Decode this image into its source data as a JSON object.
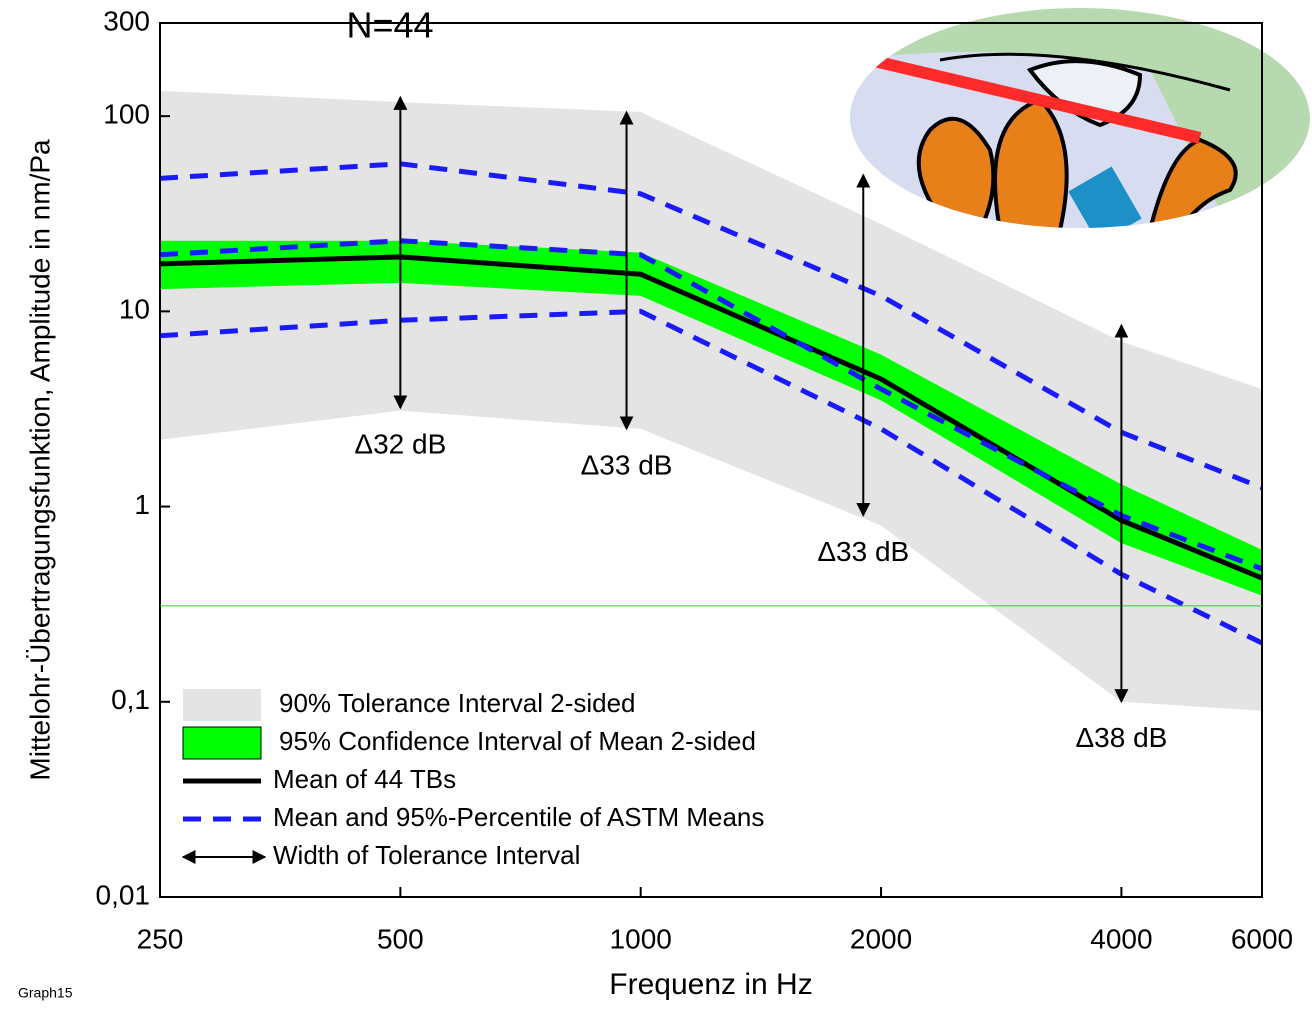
{
  "chart_data": {
    "type": "line",
    "annotations": [
      "N=44",
      "Graph15"
    ],
    "x_label": "Frequenz in Hz",
    "y_label": "Mittelohr-Übertragungsfunktion, Amplitude in nm/Pa",
    "x_log": true,
    "y_log": true,
    "xlim": [
      250,
      6000
    ],
    "xticks": [
      250,
      500,
      1000,
      2000,
      4000,
      6000
    ],
    "ylim": [
      0.01,
      300
    ],
    "yticks": [
      {
        "value": 0.01,
        "label": "0,01"
      },
      {
        "value": 0.1,
        "label": "0,1"
      },
      1,
      10,
      100,
      300
    ],
    "series": [
      {
        "name": "90% Tolerance Interval 2-sided",
        "kind": "band",
        "color": "#e4e4e4",
        "x": [
          250,
          500,
          1000,
          2000,
          4000,
          6000
        ],
        "upper": [
          135,
          118,
          105,
          28,
          7,
          4
        ],
        "lower": [
          2.2,
          3.1,
          2.5,
          0.8,
          0.1,
          0.09
        ]
      },
      {
        "name": "95% Confidence Interval of Mean 2-sided",
        "kind": "band",
        "color": "#00ff00",
        "x": [
          250,
          500,
          1000,
          2000,
          4000,
          6000
        ],
        "upper": [
          23,
          23,
          20,
          6,
          1.3,
          0.6
        ],
        "lower": [
          13,
          14,
          12,
          3.5,
          0.65,
          0.35
        ]
      },
      {
        "name": "Mean of 44 TBs",
        "kind": "line",
        "color": "#000000",
        "x": [
          250,
          500,
          1000,
          2000,
          4000,
          6000
        ],
        "values": [
          17.5,
          19,
          15.5,
          4.5,
          0.85,
          0.43
        ]
      },
      {
        "name": "Mean and 95%-Percentile of ASTM Means",
        "kind": "dashed",
        "color": "#1a1aff",
        "x": [
          250,
          500,
          1000,
          2000,
          4000,
          6000
        ],
        "lines": [
          [
            48,
            57,
            40,
            12,
            2.4,
            1.25
          ],
          [
            19.5,
            23,
            19.5,
            4,
            0.9,
            0.48
          ],
          [
            7.5,
            9,
            10,
            2.5,
            0.45,
            0.2
          ]
        ]
      }
    ],
    "arrow_legend": "Width of Tolerance Interval",
    "arrows": [
      {
        "x": 500,
        "low": 3.2,
        "high": 125,
        "label": "Δ32 dB"
      },
      {
        "x": 960,
        "low": 2.5,
        "high": 105,
        "label": "Δ33 dB"
      },
      {
        "x": 1900,
        "low": 0.9,
        "high": 50,
        "label": "Δ33 dB"
      },
      {
        "x": 4000,
        "low": 0.1,
        "high": 8.5,
        "label": "Δ38 dB"
      }
    ],
    "reference_line": {
      "value": 0.31,
      "color": "#33cc33"
    }
  }
}
